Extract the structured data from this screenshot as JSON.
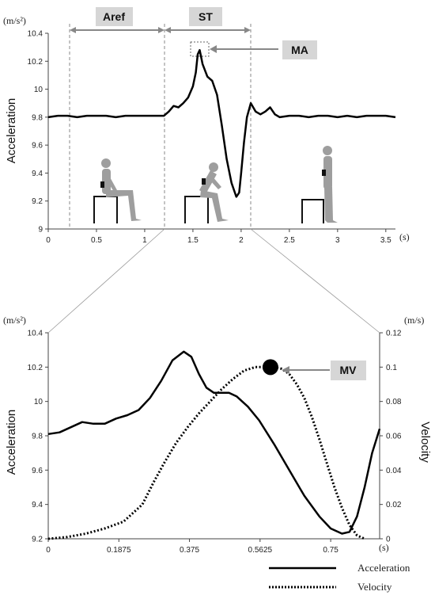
{
  "chart_data": [
    {
      "type": "line",
      "y_unit": "(m/s²)",
      "x_unit": "(s)",
      "ylabel": "Acceleration",
      "xlim": [
        0,
        3.6
      ],
      "ylim": [
        9.0,
        10.4
      ],
      "xticks": [
        0,
        0.5,
        1,
        1.5,
        2,
        2.5,
        3,
        3.5
      ],
      "xtick_labels": [
        "0",
        "0.5",
        "1",
        "1.5",
        "2",
        "2.5",
        "3",
        "3.5"
      ],
      "yticks": [
        9.0,
        9.2,
        9.4,
        9.6,
        9.8,
        10.0,
        10.2,
        10.4
      ],
      "ytick_labels": [
        "9",
        "9.2",
        "9.4",
        "9.6",
        "9.8",
        "10",
        "10.2",
        "10.4"
      ],
      "series": [
        {
          "x": [
            0,
            0.1,
            0.2,
            0.3,
            0.4,
            0.5,
            0.6,
            0.7,
            0.8,
            0.9,
            1.0,
            1.1,
            1.2,
            1.25,
            1.3,
            1.35,
            1.4,
            1.45,
            1.5,
            1.53,
            1.55,
            1.57,
            1.6,
            1.65,
            1.7,
            1.75,
            1.8,
            1.85,
            1.9,
            1.95,
            1.98,
            2.0,
            2.03,
            2.06,
            2.1,
            2.15,
            2.2,
            2.25,
            2.3,
            2.35,
            2.4,
            2.5,
            2.6,
            2.7,
            2.8,
            2.9,
            3.0,
            3.1,
            3.2,
            3.3,
            3.4,
            3.5,
            3.6
          ],
          "y": [
            9.8,
            9.81,
            9.81,
            9.8,
            9.81,
            9.81,
            9.81,
            9.8,
            9.81,
            9.81,
            9.81,
            9.81,
            9.81,
            9.84,
            9.88,
            9.87,
            9.9,
            9.94,
            10.02,
            10.12,
            10.25,
            10.28,
            10.18,
            10.09,
            10.06,
            9.96,
            9.74,
            9.5,
            9.33,
            9.23,
            9.26,
            9.4,
            9.62,
            9.8,
            9.9,
            9.84,
            9.82,
            9.84,
            9.87,
            9.82,
            9.8,
            9.81,
            9.81,
            9.8,
            9.81,
            9.81,
            9.8,
            9.81,
            9.8,
            9.81,
            9.81,
            9.81,
            9.8
          ]
        }
      ],
      "annotations": {
        "aref_label": "Aref",
        "st_label": "ST",
        "ma_label": "MA",
        "aref_span": [
          0.22,
          1.2
        ],
        "st_span": [
          1.2,
          2.08
        ],
        "ma_point": [
          1.57,
          10.28
        ]
      }
    },
    {
      "type": "line",
      "y_unit_left": "(m/s²)",
      "y_unit_right": "(m/s)",
      "x_unit": "(s)",
      "ylabel_left": "Acceleration",
      "ylabel_right": "Velocity",
      "xlim": [
        0,
        0.88
      ],
      "ylim_left": [
        9.2,
        10.4
      ],
      "ylim_right": [
        0,
        0.12
      ],
      "xticks": [
        0,
        0.1875,
        0.375,
        0.5625,
        0.75
      ],
      "xtick_labels": [
        "0",
        "0.1875",
        "0.375",
        "0.5625",
        "0.75"
      ],
      "yticks_left_labels": [
        "9.2",
        "9.4",
        "9.6",
        "9.8",
        "10",
        "10.2",
        "10.4"
      ],
      "yticks_left": [
        9.2,
        9.4,
        9.6,
        9.8,
        10.0,
        10.2,
        10.4
      ],
      "yticks_right_labels": [
        "0",
        "0.02",
        "0.04",
        "0.06",
        "0.08",
        "0.1",
        "0.12"
      ],
      "yticks_right": [
        0,
        0.02,
        0.04,
        0.06,
        0.08,
        0.1,
        0.12
      ],
      "series": [
        {
          "name": "Acceleration",
          "style": "solid",
          "axis": "left",
          "x": [
            0,
            0.03,
            0.06,
            0.09,
            0.12,
            0.15,
            0.18,
            0.21,
            0.24,
            0.27,
            0.3,
            0.33,
            0.36,
            0.38,
            0.4,
            0.42,
            0.44,
            0.46,
            0.48,
            0.5,
            0.53,
            0.56,
            0.6,
            0.64,
            0.68,
            0.72,
            0.75,
            0.78,
            0.8,
            0.82,
            0.84,
            0.86,
            0.88
          ],
          "y": [
            9.81,
            9.82,
            9.85,
            9.88,
            9.87,
            9.87,
            9.9,
            9.92,
            9.95,
            10.02,
            10.12,
            10.24,
            10.29,
            10.26,
            10.16,
            10.08,
            10.05,
            10.05,
            10.05,
            10.03,
            9.97,
            9.89,
            9.75,
            9.6,
            9.45,
            9.33,
            9.26,
            9.23,
            9.24,
            9.33,
            9.5,
            9.7,
            9.84
          ]
        },
        {
          "name": "Velocity",
          "style": "dotted",
          "axis": "right",
          "x": [
            0,
            0.05,
            0.1,
            0.15,
            0.2,
            0.25,
            0.28,
            0.31,
            0.34,
            0.37,
            0.4,
            0.43,
            0.46,
            0.49,
            0.52,
            0.55,
            0.58,
            0.6,
            0.62,
            0.64,
            0.66,
            0.68,
            0.7,
            0.72,
            0.74,
            0.76,
            0.78,
            0.8,
            0.82,
            0.84
          ],
          "y": [
            0,
            0.001,
            0.003,
            0.006,
            0.01,
            0.02,
            0.033,
            0.045,
            0.056,
            0.065,
            0.073,
            0.08,
            0.087,
            0.093,
            0.098,
            0.1,
            0.1,
            0.1,
            0.099,
            0.096,
            0.09,
            0.082,
            0.071,
            0.058,
            0.044,
            0.03,
            0.018,
            0.008,
            0.002,
            0
          ]
        }
      ],
      "annotations": {
        "mv_label": "MV",
        "mv_point": [
          0.59,
          0.1
        ]
      },
      "legend": [
        {
          "name": "Acceleration",
          "style": "solid"
        },
        {
          "name": "Velocity",
          "style": "dotted"
        }
      ],
      "legend_position": "bottom-right"
    }
  ]
}
